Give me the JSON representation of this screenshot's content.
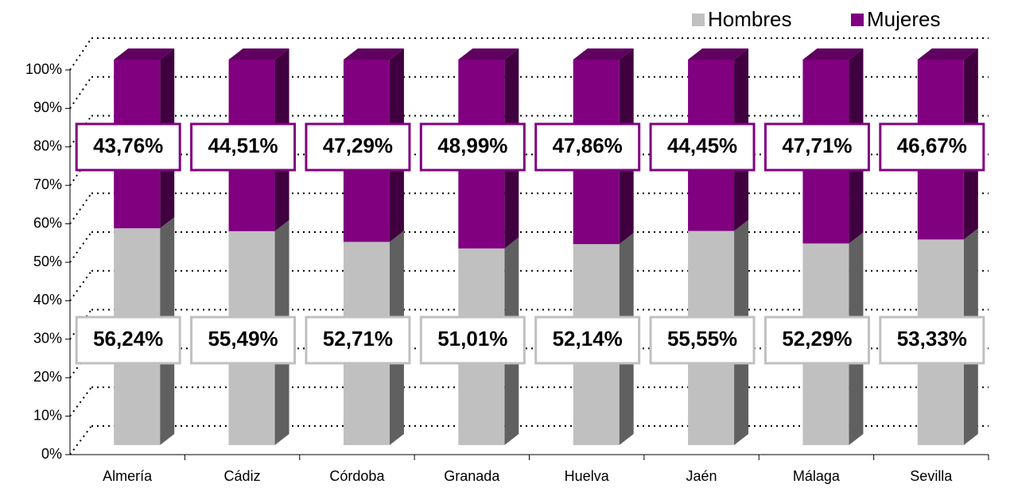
{
  "chart_data": {
    "type": "bar",
    "stacked": true,
    "categories": [
      "Almería",
      "Cádiz",
      "Córdoba",
      "Granada",
      "Huelva",
      "Jaén",
      "Málaga",
      "Sevilla"
    ],
    "series": [
      {
        "name": "Hombres",
        "color": "#c0c0c0",
        "values": [
          56.24,
          55.49,
          52.71,
          51.01,
          52.14,
          55.55,
          52.29,
          53.33
        ],
        "value_labels": [
          "56,24%",
          "55,49%",
          "52,71%",
          "51,01%",
          "52,14%",
          "55,55%",
          "52,29%",
          "53,33%"
        ]
      },
      {
        "name": "Mujeres",
        "color": "#800080",
        "values": [
          43.76,
          44.51,
          47.29,
          48.99,
          47.86,
          44.45,
          47.71,
          46.67
        ],
        "value_labels": [
          "43,76%",
          "44,51%",
          "47,29%",
          "48,99%",
          "47,86%",
          "44,45%",
          "47,71%",
          "46,67%"
        ]
      }
    ],
    "ylim": [
      0,
      100
    ],
    "yticks": [
      {
        "value": 0,
        "label": "0%"
      },
      {
        "value": 10,
        "label": "10%"
      },
      {
        "value": 20,
        "label": "20%"
      },
      {
        "value": 30,
        "label": "30%"
      },
      {
        "value": 40,
        "label": "40%"
      },
      {
        "value": 50,
        "label": "50%"
      },
      {
        "value": 60,
        "label": "60%"
      },
      {
        "value": 70,
        "label": "70%"
      },
      {
        "value": 80,
        "label": "80%"
      },
      {
        "value": 90,
        "label": "90%"
      },
      {
        "value": 100,
        "label": "100%"
      }
    ],
    "grid": true,
    "legend": "top-right"
  }
}
